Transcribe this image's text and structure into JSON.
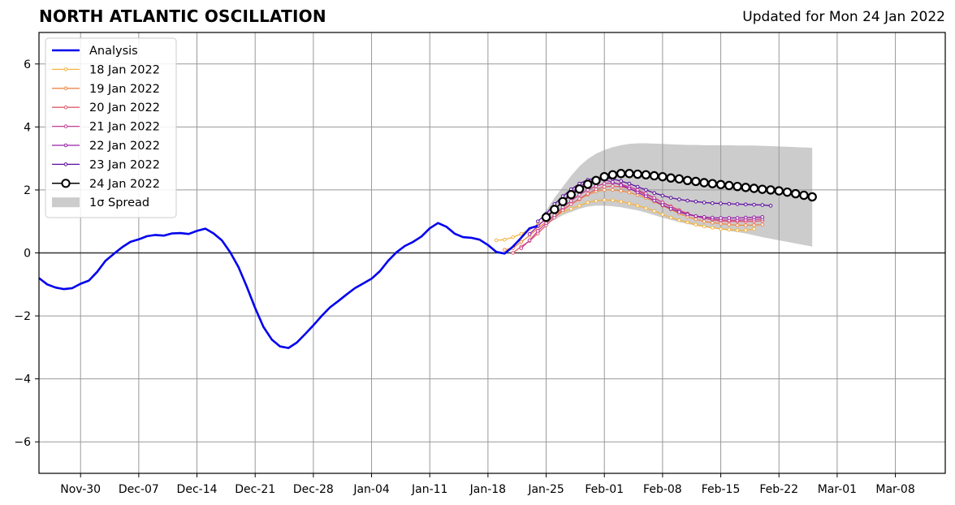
{
  "header": {
    "title": "NORTH ATLANTIC OSCILLATION",
    "updated": "Updated for Mon 24 Jan 2022"
  },
  "colors": {
    "analysis": "#0000ee",
    "spread": "#cccccc",
    "grid": "#999999",
    "forecast_2401_marker_face": "#ffffff",
    "forecast_2401_line": "#000000"
  },
  "chart_data": {
    "type": "line",
    "title": "NORTH ATLANTIC OSCILLATION",
    "xlabel": "",
    "ylabel": "",
    "x_unit": "day offset from 2021-11-30",
    "xlim_dates": [
      "2021-11-25",
      "2022-03-14"
    ],
    "ylim": [
      -7,
      7
    ],
    "yticks": [
      -6,
      -4,
      -2,
      0,
      2,
      4,
      6
    ],
    "xtick_labels": [
      "Nov-30",
      "Dec-07",
      "Dec-14",
      "Dec-21",
      "Dec-28",
      "Jan-04",
      "Jan-11",
      "Jan-18",
      "Jan-25",
      "Feb-01",
      "Feb-08",
      "Feb-15",
      "Feb-22",
      "Mar-01",
      "Mar-08"
    ],
    "xtick_dates": [
      "2021-11-30",
      "2021-12-07",
      "2021-12-14",
      "2021-12-21",
      "2021-12-28",
      "2022-01-04",
      "2022-01-11",
      "2022-01-18",
      "2022-01-25",
      "2022-02-01",
      "2022-02-08",
      "2022-02-15",
      "2022-02-22",
      "2022-03-01",
      "2022-03-08"
    ],
    "grid": true,
    "legend_placement": "top-left",
    "legend": [
      "Analysis",
      "18 Jan 2022",
      "19 Jan 2022",
      "20 Jan 2022",
      "21 Jan 2022",
      "22 Jan 2022",
      "23 Jan 2022",
      "24 Jan 2022",
      "1σ Spread"
    ],
    "analysis": {
      "name": "Analysis",
      "color": "#0000ee",
      "start_date": "2021-11-25",
      "values": [
        -0.8,
        -1.0,
        -1.1,
        -1.15,
        -1.12,
        -0.98,
        -0.88,
        -0.6,
        -0.25,
        -0.03,
        0.18,
        0.35,
        0.43,
        0.53,
        0.57,
        0.55,
        0.62,
        0.63,
        0.6,
        0.7,
        0.77,
        0.62,
        0.4,
        0.02,
        -0.45,
        -1.08,
        -1.75,
        -2.35,
        -2.75,
        -2.97,
        -3.02,
        -2.85,
        -2.58,
        -2.3,
        -2.0,
        -1.73,
        -1.53,
        -1.32,
        -1.12,
        -0.97,
        -0.82,
        -0.58,
        -0.25,
        0.02,
        0.22,
        0.35,
        0.52,
        0.78,
        0.95,
        0.83,
        0.61,
        0.5,
        0.48,
        0.42,
        0.25,
        0.03,
        -0.02,
        0.2,
        0.48,
        0.78,
        0.86
      ]
    },
    "spread": {
      "name": "1σ Spread",
      "color": "#cccccc",
      "start_date": "2022-01-25",
      "upper": [
        1.35,
        1.75,
        2.1,
        2.45,
        2.75,
        2.98,
        3.15,
        3.27,
        3.36,
        3.42,
        3.46,
        3.48,
        3.48,
        3.47,
        3.46,
        3.45,
        3.44,
        3.43,
        3.43,
        3.42,
        3.42,
        3.42,
        3.42,
        3.41,
        3.41,
        3.41,
        3.4,
        3.39,
        3.38,
        3.37,
        3.36,
        3.35,
        3.34
      ],
      "lower": [
        0.9,
        1.05,
        1.2,
        1.3,
        1.4,
        1.47,
        1.5,
        1.5,
        1.48,
        1.45,
        1.4,
        1.35,
        1.28,
        1.2,
        1.12,
        1.05,
        0.98,
        0.92,
        0.86,
        0.82,
        0.78,
        0.74,
        0.7,
        0.66,
        0.62,
        0.56,
        0.5,
        0.45,
        0.4,
        0.35,
        0.3,
        0.25,
        0.2
      ]
    },
    "series": [
      {
        "name": "18 Jan 2022",
        "color": "#f5b342",
        "start_date": "2022-01-19",
        "values": [
          0.4,
          0.42,
          0.5,
          0.6,
          0.75,
          0.9,
          1.05,
          1.15,
          1.3,
          1.4,
          1.5,
          1.6,
          1.65,
          1.68,
          1.67,
          1.63,
          1.57,
          1.5,
          1.42,
          1.33,
          1.22,
          1.12,
          1.04,
          0.97,
          0.9,
          0.84,
          0.8,
          0.76,
          0.74,
          0.72,
          0.72,
          0.76
        ]
      },
      {
        "name": "19 Jan 2022",
        "color": "#ed8a4a",
        "start_date": "2022-01-20",
        "values": [
          0.1,
          0.15,
          0.35,
          0.55,
          0.78,
          1.0,
          1.2,
          1.38,
          1.55,
          1.7,
          1.85,
          1.95,
          2.0,
          2.0,
          1.97,
          1.92,
          1.84,
          1.75,
          1.63,
          1.5,
          1.38,
          1.25,
          1.15,
          1.07,
          1.0,
          0.96,
          0.93,
          0.9,
          0.88,
          0.88,
          0.88,
          0.9
        ]
      },
      {
        "name": "20 Jan 2022",
        "color": "#df5e6e",
        "start_date": "2022-01-21",
        "values": [
          0.0,
          0.2,
          0.38,
          0.62,
          0.88,
          1.12,
          1.35,
          1.55,
          1.72,
          1.88,
          2.02,
          2.1,
          2.12,
          2.1,
          2.04,
          1.96,
          1.86,
          1.74,
          1.6,
          1.48,
          1.36,
          1.25,
          1.17,
          1.1,
          1.05,
          1.01,
          1.0,
          1.0,
          1.0,
          1.0,
          1.02
        ]
      },
      {
        "name": "21 Jan 2022",
        "color": "#c43f96",
        "start_date": "2022-01-22",
        "values": [
          0.15,
          0.4,
          0.7,
          0.95,
          1.2,
          1.45,
          1.65,
          1.85,
          2.0,
          2.12,
          2.2,
          2.22,
          2.18,
          2.1,
          2.0,
          1.88,
          1.75,
          1.6,
          1.46,
          1.34,
          1.24,
          1.16,
          1.1,
          1.07,
          1.05,
          1.04,
          1.04,
          1.05,
          1.06,
          1.08
        ]
      },
      {
        "name": "22 Jan 2022",
        "color": "#9622a8",
        "start_date": "2022-01-23",
        "values": [
          0.6,
          0.85,
          1.1,
          1.38,
          1.65,
          1.9,
          2.1,
          2.25,
          2.32,
          2.32,
          2.25,
          2.15,
          2.05,
          1.92,
          1.8,
          1.66,
          1.52,
          1.4,
          1.3,
          1.22,
          1.17,
          1.14,
          1.12,
          1.11,
          1.11,
          1.11,
          1.12,
          1.13,
          1.14
        ]
      },
      {
        "name": "23 Jan 2022",
        "color": "#5c0fa0",
        "start_date": "2022-01-24",
        "values": [
          1.0,
          1.25,
          1.55,
          1.8,
          2.02,
          2.2,
          2.32,
          2.38,
          2.38,
          2.35,
          2.28,
          2.2,
          2.1,
          2.0,
          1.9,
          1.82,
          1.75,
          1.7,
          1.66,
          1.63,
          1.6,
          1.58,
          1.57,
          1.56,
          1.55,
          1.54,
          1.53,
          1.52,
          1.5
        ]
      },
      {
        "name": "24 Jan 2022",
        "color": "#000000",
        "start_date": "2022-01-25",
        "values": [
          1.13,
          1.38,
          1.63,
          1.85,
          2.03,
          2.18,
          2.3,
          2.42,
          2.48,
          2.52,
          2.52,
          2.5,
          2.48,
          2.45,
          2.42,
          2.38,
          2.35,
          2.3,
          2.27,
          2.23,
          2.2,
          2.17,
          2.14,
          2.11,
          2.08,
          2.05,
          2.02,
          2.0,
          1.97,
          1.93,
          1.88,
          1.83,
          1.78
        ]
      }
    ]
  }
}
